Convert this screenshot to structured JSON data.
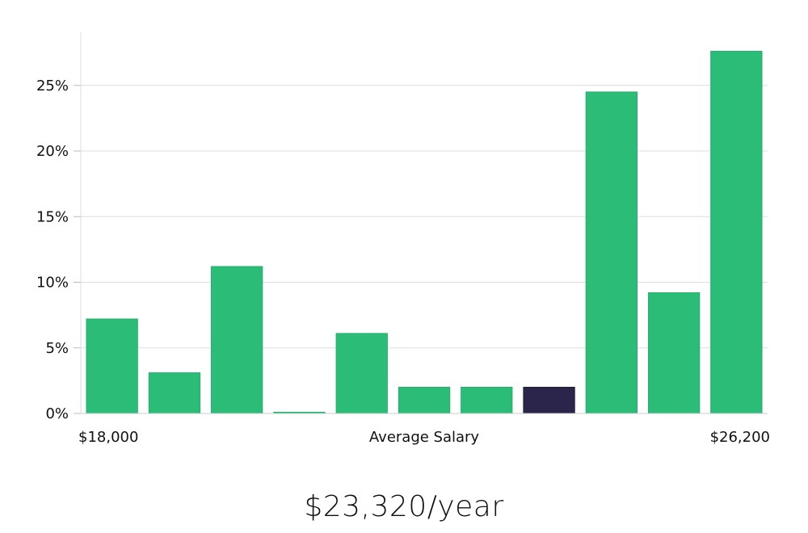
{
  "chart_data": {
    "type": "bar",
    "title": "",
    "xlabel": "Average Salary",
    "ylabel": "",
    "x_min_label": "$18,000",
    "x_max_label": "$26,200",
    "ylim": [
      0,
      29
    ],
    "yticks": [
      0,
      5,
      10,
      15,
      20,
      25
    ],
    "ytick_labels": [
      "0%",
      "5%",
      "10%",
      "15%",
      "20%",
      "25%"
    ],
    "values": [
      7.2,
      3.1,
      11.2,
      0.1,
      6.1,
      2.0,
      2.0,
      2.0,
      24.5,
      9.2,
      27.6
    ],
    "highlight_index": 7,
    "bar_color": "#2bbd77",
    "highlight_color": "#2b244b",
    "grid": true,
    "legend": "none"
  },
  "headline": "$23,320/year"
}
